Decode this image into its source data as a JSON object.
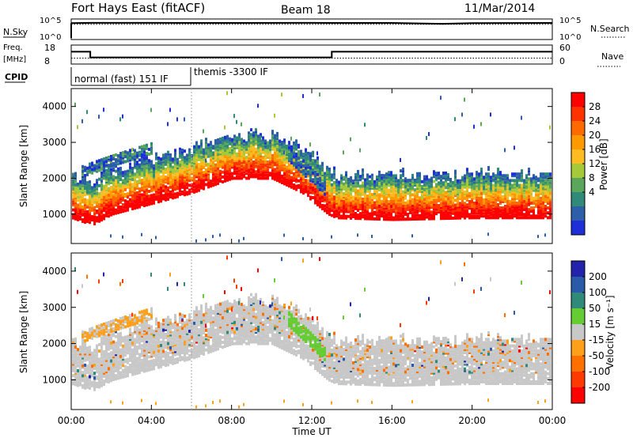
{
  "header": {
    "radar": "Fort Hays East (fitACF)",
    "beam": "Beam 18",
    "date": "11/Mar/2014"
  },
  "strips": {
    "nsky_label": "N.Sky",
    "nsky_ticks": [
      "10^5",
      "10^0"
    ],
    "nsearch_label": "N.Search",
    "nsearch_ticks": [
      "10^5",
      "10^0"
    ],
    "freq_label_1": "Freq.",
    "freq_label_2": "[MHz]",
    "freq_ticks": [
      "18",
      "8"
    ],
    "nave_label": "Nave",
    "nave_ticks": [
      "60",
      "0"
    ],
    "cpid_label": "CPID",
    "cpid_segments": [
      "normal (fast) 151 IF",
      "themis -3300 IF"
    ]
  },
  "axes": {
    "xlabel": "Time UT",
    "ylabel": "Slant Range [km]",
    "xticks": [
      "00:00",
      "04:00",
      "08:00",
      "12:00",
      "16:00",
      "20:00",
      "00:00"
    ],
    "yticks": [
      "1000",
      "2000",
      "3000",
      "4000"
    ]
  },
  "colorbars": {
    "power": {
      "label": "Power [dB]",
      "ticks": [
        "28",
        "24",
        "20",
        "16",
        "12",
        "8",
        "4"
      ],
      "colors": [
        "#ff0000",
        "#ff3300",
        "#ff6a00",
        "#ff9900",
        "#ffbb22",
        "#a6c93a",
        "#5aa65a",
        "#2f8a7a",
        "#2c5fa8",
        "#1f2fd8"
      ]
    },
    "velocity": {
      "label": "Velocity [m s⁻¹]",
      "ticks": [
        "200",
        "100",
        "50",
        "15",
        "-15",
        "-50",
        "-100",
        "-200"
      ],
      "colors": [
        "#2222aa",
        "#2a5aa8",
        "#2f8a7a",
        "#66cc33",
        "#c8c8c8",
        "#ff9f1a",
        "#ff7000",
        "#ff3a00",
        "#ff0000"
      ]
    }
  },
  "chart_data": [
    {
      "type": "line",
      "title": "N.Sky / N.Search",
      "series": [
        {
          "name": "N.Sky",
          "x": [
            0,
            1,
            4,
            8,
            12,
            13,
            16,
            18.5,
            20,
            24
          ],
          "y": [
            50000,
            60000,
            60000,
            55000,
            60000,
            55000,
            55000,
            30000,
            50000,
            55000
          ]
        },
        {
          "name": "N.Search",
          "x": [
            0,
            4,
            8,
            12,
            16,
            20,
            24
          ],
          "y": [
            20000,
            20000,
            20000,
            20000,
            20000,
            20000,
            20000
          ]
        }
      ]
    },
    {
      "type": "line",
      "title": "Freq. / Nave",
      "series": [
        {
          "name": "Freq.",
          "x": [
            0,
            0.95,
            0.95,
            13,
            13,
            24
          ],
          "y": [
            15,
            15,
            11,
            11,
            15,
            15
          ]
        },
        {
          "name": "Nave",
          "x": [
            0,
            4,
            8,
            12,
            16,
            20,
            24
          ],
          "y": [
            15,
            15,
            15,
            15,
            15,
            15,
            15
          ]
        }
      ]
    },
    {
      "type": "heatmap",
      "title": "Power [dB]",
      "xlabel": "Time UT",
      "ylabel": "Slant Range [km]",
      "xlim": [
        0,
        24
      ],
      "ylim": [
        180,
        4500
      ],
      "bands": [
        {
          "name": "main",
          "x": [
            0,
            1,
            2,
            4,
            6,
            8,
            10,
            11.5,
            12.8,
            13.2,
            16,
            20,
            24
          ],
          "y": [
            1050,
            850,
            1150,
            1450,
            1750,
            2150,
            2150,
            1750,
            1150,
            1050,
            1000,
            1050,
            1050
          ]
        },
        {
          "name": "upper",
          "x": [
            0.5,
            2,
            4
          ],
          "y": [
            2300,
            2600,
            2950
          ]
        },
        {
          "name": "streak",
          "x": [
            10.8,
            12.7
          ],
          "y": [
            2750,
            1750
          ]
        }
      ]
    },
    {
      "type": "heatmap",
      "title": "Velocity [m s⁻¹]",
      "xlabel": "Time UT",
      "ylabel": "Slant Range [km]",
      "xlim": [
        0,
        24
      ],
      "ylim": [
        180,
        4500
      ],
      "bands": [
        {
          "name": "main",
          "x": [
            0,
            1,
            2,
            4,
            6,
            8,
            10,
            11.5,
            12.8,
            13.2,
            16,
            20,
            24
          ],
          "y": [
            1050,
            850,
            1150,
            1450,
            1750,
            2150,
            2150,
            1750,
            1150,
            1050,
            1000,
            1050,
            1050
          ]
        },
        {
          "name": "positive-streak",
          "x": [
            10.8,
            12.7
          ],
          "y": [
            2750,
            1750
          ]
        },
        {
          "name": "negative-patch",
          "x": [
            0.5,
            2,
            4
          ],
          "y": [
            2300,
            2600,
            2950
          ]
        }
      ]
    }
  ]
}
